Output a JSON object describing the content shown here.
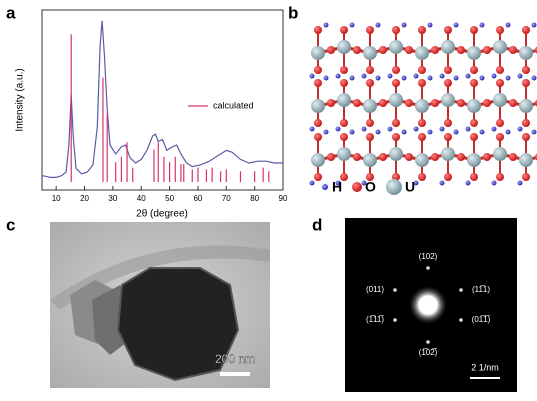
{
  "panel_labels": [
    "a",
    "b",
    "c",
    "d"
  ],
  "chart_data": {
    "type": "line",
    "xlabel": "2θ (degree)",
    "ylabel": "Intensity (a.u.)",
    "xlim": [
      5,
      90
    ],
    "xticks": [
      10,
      20,
      30,
      40,
      50,
      60,
      70,
      80,
      90
    ],
    "ylim": [
      0,
      100
    ],
    "series": [
      {
        "color": "#5a5aa8",
        "x": [
          5,
          8,
          10,
          12,
          13.5,
          14.5,
          15.3,
          16,
          17,
          19,
          21,
          23,
          24.5,
          25.5,
          26.2,
          27,
          28,
          29,
          31,
          33,
          34.5,
          36,
          38,
          40,
          42,
          44,
          45,
          46,
          47.5,
          49,
          51,
          52.5,
          54,
          56,
          58,
          61,
          64,
          67,
          70,
          72,
          75,
          78,
          81,
          84,
          87,
          90
        ],
        "values": [
          8,
          7,
          7,
          8,
          10,
          25,
          53,
          30,
          12,
          9,
          10,
          14,
          35,
          80,
          94,
          75,
          45,
          25,
          20,
          24,
          25,
          18,
          15,
          17,
          22,
          30,
          31,
          27,
          28,
          22,
          24,
          25,
          20,
          15,
          13,
          14,
          16,
          19,
          22,
          21,
          17,
          15,
          16,
          16,
          15,
          15
        ]
      },
      {
        "name": "calculated",
        "color": "#d6336c",
        "style": "stem",
        "x": [
          15.3,
          26.5,
          28,
          31,
          33,
          35,
          37,
          44.5,
          46,
          48,
          50,
          52,
          54,
          55,
          58,
          60,
          63,
          65,
          68,
          70,
          75,
          80,
          83,
          85
        ],
        "values": [
          82,
          58,
          38,
          11,
          14,
          22,
          8,
          18,
          22,
          14,
          11,
          14,
          10,
          10,
          7,
          8,
          7,
          8,
          6,
          7,
          6,
          6,
          8,
          6
        ]
      }
    ]
  },
  "structure": {
    "legend": [
      "H",
      "O",
      "U"
    ]
  },
  "tem": {
    "scale_bar": "200 nm"
  },
  "diffraction": {
    "spots": [
      "(102)",
      "(011)",
      "(11̅1)",
      "(1̅11̅)",
      "(01̅1̅)",
      "(1̅02̅)"
    ],
    "scale_bar": "2 1/nm"
  }
}
